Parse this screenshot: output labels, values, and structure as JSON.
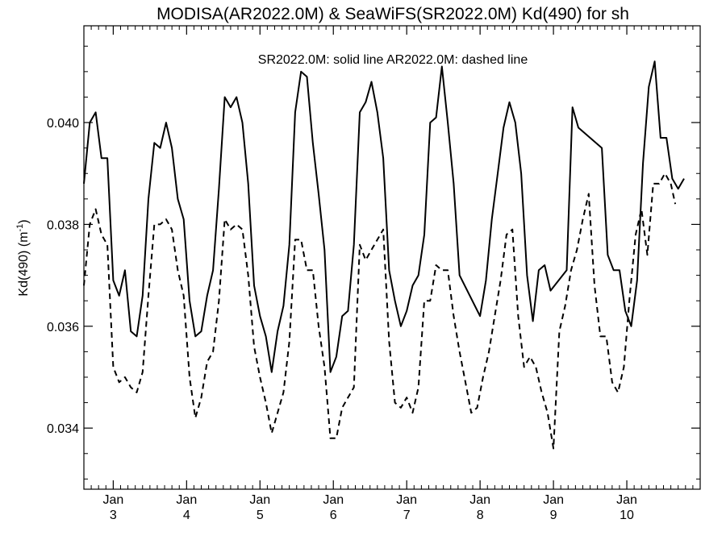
{
  "chart_data": {
    "type": "line",
    "title": "MODISA(AR2022.0M) & SeaWiFS(SR2022.0M)  Kd(490) for sh",
    "annotation": "SR2022.0M: solid line   AR2022.0M: dashed line",
    "ylabel": "Kd(490) (m",
    "ylabel_superscript": "-1",
    "ylabel_close": ")",
    "ylim": [
      0.0328,
      0.0419
    ],
    "xlim": [
      0,
      84
    ],
    "yticks": [
      0.034,
      0.036,
      0.038,
      0.04
    ],
    "ytick_labels": [
      "0.034",
      "0.036",
      "0.038",
      "0.040"
    ],
    "xticks": [
      {
        "x": 4,
        "month": "Jan",
        "day": "3"
      },
      {
        "x": 14,
        "month": "Jan",
        "day": "4"
      },
      {
        "x": 24,
        "month": "Jan",
        "day": "5"
      },
      {
        "x": 34,
        "month": "Jan",
        "day": "6"
      },
      {
        "x": 44,
        "month": "Jan",
        "day": "7"
      },
      {
        "x": 54,
        "month": "Jan",
        "day": "8"
      },
      {
        "x": 64,
        "month": "Jan",
        "day": "9"
      },
      {
        "x": 74,
        "month": "Jan",
        "day": "10"
      }
    ],
    "minor_tick_step": 1,
    "grid": false,
    "series": [
      {
        "name": "SR2022.0M",
        "style": "solid",
        "color": "#000000",
        "points": [
          [
            0,
            0.0388
          ],
          [
            0.8,
            0.04
          ],
          [
            1.6,
            0.0402
          ],
          [
            2.4,
            0.0393
          ],
          [
            3.2,
            0.0393
          ],
          [
            4.0,
            0.0369
          ],
          [
            4.8,
            0.0366
          ],
          [
            5.6,
            0.0371
          ],
          [
            6.4,
            0.0359
          ],
          [
            7.2,
            0.0358
          ],
          [
            8.0,
            0.0366
          ],
          [
            8.8,
            0.0385
          ],
          [
            9.6,
            0.0396
          ],
          [
            10.4,
            0.0395
          ],
          [
            11.2,
            0.04
          ],
          [
            12.0,
            0.0395
          ],
          [
            12.8,
            0.0385
          ],
          [
            13.6,
            0.0381
          ],
          [
            14.4,
            0.0365
          ],
          [
            15.2,
            0.0358
          ],
          [
            16.0,
            0.0359
          ],
          [
            16.8,
            0.0366
          ],
          [
            17.6,
            0.0371
          ],
          [
            18.4,
            0.0387
          ],
          [
            19.2,
            0.0405
          ],
          [
            20.0,
            0.0403
          ],
          [
            20.8,
            0.0405
          ],
          [
            21.6,
            0.04
          ],
          [
            22.4,
            0.0388
          ],
          [
            23.2,
            0.0368
          ],
          [
            24.0,
            0.0362
          ],
          [
            24.8,
            0.0358
          ],
          [
            25.6,
            0.0351
          ],
          [
            26.4,
            0.0359
          ],
          [
            27.2,
            0.0364
          ],
          [
            28.0,
            0.0376
          ],
          [
            28.8,
            0.0402
          ],
          [
            29.6,
            0.041
          ],
          [
            30.4,
            0.0409
          ],
          [
            31.2,
            0.0396
          ],
          [
            32.0,
            0.0386
          ],
          [
            32.8,
            0.0375
          ],
          [
            33.6,
            0.0351
          ],
          [
            34.4,
            0.0354
          ],
          [
            35.2,
            0.0362
          ],
          [
            36.0,
            0.0363
          ],
          [
            36.8,
            0.0376
          ],
          [
            37.6,
            0.0402
          ],
          [
            38.4,
            0.0404
          ],
          [
            39.2,
            0.0408
          ],
          [
            40.0,
            0.0402
          ],
          [
            40.8,
            0.0393
          ],
          [
            41.6,
            0.0371
          ],
          [
            42.4,
            0.0365
          ],
          [
            43.2,
            0.036
          ],
          [
            44.0,
            0.0363
          ],
          [
            44.8,
            0.0368
          ],
          [
            45.6,
            0.037
          ],
          [
            46.4,
            0.0378
          ],
          [
            47.2,
            0.04
          ],
          [
            48.0,
            0.0401
          ],
          [
            48.8,
            0.0411
          ],
          [
            49.6,
            0.04
          ],
          [
            50.4,
            0.0388
          ],
          [
            51.2,
            0.037
          ],
          [
            54.0,
            0.0362
          ],
          [
            54.8,
            0.0369
          ],
          [
            55.6,
            0.0381
          ],
          [
            56.4,
            0.039
          ],
          [
            57.2,
            0.0399
          ],
          [
            58.0,
            0.0404
          ],
          [
            58.8,
            0.04
          ],
          [
            59.6,
            0.039
          ],
          [
            60.4,
            0.037
          ],
          [
            61.2,
            0.0361
          ],
          [
            62.0,
            0.0371
          ],
          [
            62.8,
            0.0372
          ],
          [
            63.6,
            0.0367
          ],
          [
            65.8,
            0.0371
          ],
          [
            66.6,
            0.0403
          ],
          [
            67.4,
            0.0399
          ],
          [
            70.6,
            0.0395
          ],
          [
            71.4,
            0.0374
          ],
          [
            72.2,
            0.0371
          ],
          [
            73.0,
            0.0371
          ],
          [
            73.8,
            0.0363
          ],
          [
            74.6,
            0.036
          ],
          [
            75.4,
            0.0369
          ],
          [
            76.2,
            0.0392
          ],
          [
            77.0,
            0.0407
          ],
          [
            77.8,
            0.0412
          ],
          [
            78.6,
            0.0397
          ],
          [
            79.4,
            0.0397
          ],
          [
            80.2,
            0.0389
          ],
          [
            81.0,
            0.0387
          ],
          [
            81.8,
            0.0389
          ]
        ]
      },
      {
        "name": "AR2022.0M",
        "style": "dashed",
        "color": "#000000",
        "points": [
          [
            0,
            0.0368
          ],
          [
            0.8,
            0.038
          ],
          [
            1.6,
            0.0383
          ],
          [
            2.4,
            0.0378
          ],
          [
            3.2,
            0.0376
          ],
          [
            4.0,
            0.0352
          ],
          [
            4.8,
            0.0349
          ],
          [
            5.6,
            0.035
          ],
          [
            6.4,
            0.0348
          ],
          [
            7.2,
            0.0347
          ],
          [
            8.0,
            0.0351
          ],
          [
            8.8,
            0.0366
          ],
          [
            9.6,
            0.038
          ],
          [
            10.4,
            0.038
          ],
          [
            11.2,
            0.0381
          ],
          [
            12.0,
            0.0379
          ],
          [
            12.8,
            0.0371
          ],
          [
            13.6,
            0.0366
          ],
          [
            14.4,
            0.035
          ],
          [
            15.2,
            0.0342
          ],
          [
            16.0,
            0.0346
          ],
          [
            16.8,
            0.0353
          ],
          [
            17.6,
            0.0355
          ],
          [
            18.4,
            0.0365
          ],
          [
            19.2,
            0.0381
          ],
          [
            20.0,
            0.0379
          ],
          [
            20.8,
            0.038
          ],
          [
            21.6,
            0.0379
          ],
          [
            22.4,
            0.037
          ],
          [
            23.2,
            0.0356
          ],
          [
            24.0,
            0.035
          ],
          [
            24.8,
            0.0345
          ],
          [
            25.6,
            0.0339
          ],
          [
            26.4,
            0.0343
          ],
          [
            27.2,
            0.0347
          ],
          [
            28.0,
            0.0357
          ],
          [
            28.8,
            0.0377
          ],
          [
            29.6,
            0.0377
          ],
          [
            30.4,
            0.0371
          ],
          [
            31.2,
            0.0371
          ],
          [
            32.0,
            0.036
          ],
          [
            32.8,
            0.0352
          ],
          [
            33.6,
            0.0338
          ],
          [
            34.4,
            0.0338
          ],
          [
            35.2,
            0.0344
          ],
          [
            36.0,
            0.0346
          ],
          [
            36.8,
            0.0348
          ],
          [
            37.6,
            0.0376
          ],
          [
            38.4,
            0.0373
          ],
          [
            39.2,
            0.0375
          ],
          [
            40.0,
            0.0377
          ],
          [
            40.8,
            0.0379
          ],
          [
            41.6,
            0.0357
          ],
          [
            42.4,
            0.0345
          ],
          [
            43.2,
            0.0344
          ],
          [
            44.0,
            0.0346
          ],
          [
            44.8,
            0.0343
          ],
          [
            45.6,
            0.0348
          ],
          [
            46.4,
            0.0365
          ],
          [
            47.2,
            0.0365
          ],
          [
            48.0,
            0.0372
          ],
          [
            48.8,
            0.0371
          ],
          [
            49.6,
            0.0371
          ],
          [
            50.4,
            0.0362
          ],
          [
            51.2,
            0.0355
          ],
          [
            52.0,
            0.0349
          ],
          [
            52.8,
            0.0343
          ],
          [
            53.6,
            0.0344
          ],
          [
            54.4,
            0.035
          ],
          [
            55.2,
            0.0355
          ],
          [
            56.0,
            0.0362
          ],
          [
            56.8,
            0.0369
          ],
          [
            57.6,
            0.0378
          ],
          [
            58.4,
            0.0379
          ],
          [
            59.2,
            0.0362
          ],
          [
            60.0,
            0.0352
          ],
          [
            60.8,
            0.0354
          ],
          [
            61.6,
            0.0352
          ],
          [
            62.4,
            0.0347
          ],
          [
            63.2,
            0.0343
          ],
          [
            64.0,
            0.0336
          ],
          [
            64.8,
            0.0359
          ],
          [
            65.6,
            0.0364
          ],
          [
            66.4,
            0.0371
          ],
          [
            67.2,
            0.0375
          ],
          [
            68.0,
            0.0381
          ],
          [
            68.8,
            0.0386
          ],
          [
            69.6,
            0.0368
          ],
          [
            70.4,
            0.0358
          ],
          [
            71.2,
            0.0358
          ],
          [
            72.0,
            0.0349
          ],
          [
            72.8,
            0.0347
          ],
          [
            73.6,
            0.0352
          ],
          [
            74.4,
            0.0366
          ],
          [
            75.2,
            0.0378
          ],
          [
            76.0,
            0.0383
          ],
          [
            76.8,
            0.0374
          ],
          [
            77.6,
            0.0388
          ],
          [
            78.4,
            0.0388
          ],
          [
            79.2,
            0.039
          ],
          [
            80.0,
            0.0388
          ],
          [
            80.6,
            0.0384
          ]
        ]
      }
    ]
  }
}
